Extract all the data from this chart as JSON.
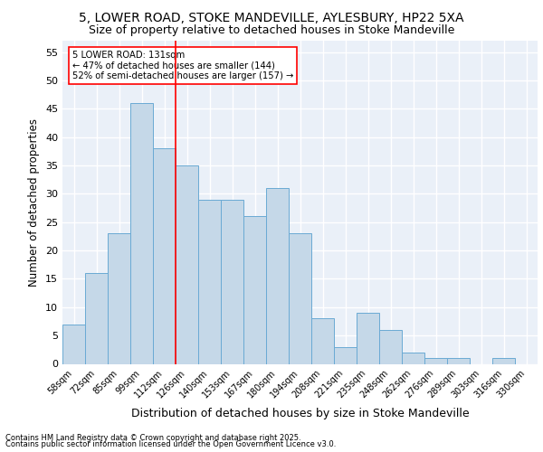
{
  "title1": "5, LOWER ROAD, STOKE MANDEVILLE, AYLESBURY, HP22 5XA",
  "title2": "Size of property relative to detached houses in Stoke Mandeville",
  "xlabel": "Distribution of detached houses by size in Stoke Mandeville",
  "ylabel": "Number of detached properties",
  "categories": [
    "58sqm",
    "72sqm",
    "85sqm",
    "99sqm",
    "112sqm",
    "126sqm",
    "140sqm",
    "153sqm",
    "167sqm",
    "180sqm",
    "194sqm",
    "208sqm",
    "221sqm",
    "235sqm",
    "248sqm",
    "262sqm",
    "276sqm",
    "289sqm",
    "303sqm",
    "316sqm",
    "330sqm"
  ],
  "values": [
    7,
    16,
    23,
    46,
    38,
    35,
    29,
    29,
    26,
    31,
    23,
    8,
    3,
    9,
    6,
    2,
    1,
    1,
    0,
    1,
    0
  ],
  "bar_color": "#c5d8e8",
  "bar_edge_color": "#6aaad4",
  "vline_x": 4.5,
  "vline_label": "5 LOWER ROAD: 131sqm",
  "annotation_line1": "← 47% of detached houses are smaller (144)",
  "annotation_line2": "52% of semi-detached houses are larger (157) →",
  "ylim": [
    0,
    57
  ],
  "yticks": [
    0,
    5,
    10,
    15,
    20,
    25,
    30,
    35,
    40,
    45,
    50,
    55
  ],
  "footnote1": "Contains HM Land Registry data © Crown copyright and database right 2025.",
  "footnote2": "Contains public sector information licensed under the Open Government Licence v3.0.",
  "bg_color": "#eaf0f8",
  "grid_color": "#ffffff",
  "title1_fontsize": 10,
  "title2_fontsize": 9
}
